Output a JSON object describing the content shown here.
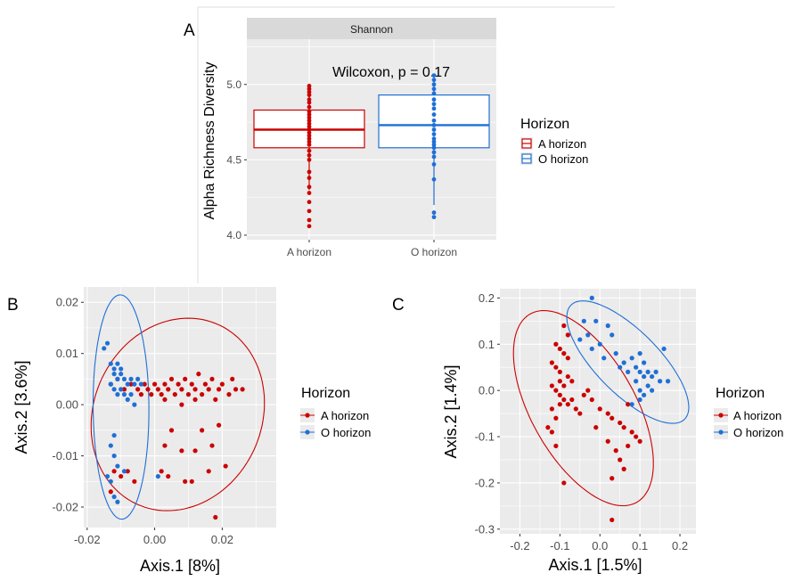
{
  "colors": {
    "a_horizon": "#cc0000",
    "o_horizon": "#1f6fd6",
    "panel_bg": "#ebebeb",
    "grid": "#ffffff",
    "strip_bg": "#d9d9d9"
  },
  "legend": {
    "title": "Horizon",
    "items": [
      "A horizon",
      "O horizon"
    ]
  },
  "chart_data": [
    {
      "panel": "A",
      "type": "box",
      "facet_label": "Shannon",
      "annotation": "Wilcoxon, p = 0.17",
      "xlabel": "",
      "ylabel": "Alpha Richness Diversity",
      "categories": [
        "A horizon",
        "O horizon"
      ],
      "yticks": [
        "4.0",
        "4.5",
        "5.0"
      ],
      "ylim": [
        3.97,
        5.3
      ],
      "boxes": [
        {
          "name": "A horizon",
          "whisker_low": 4.3,
          "q1": 4.58,
          "median": 4.7,
          "q3": 4.83,
          "whisker_high": 5.0,
          "points": [
            4.06,
            4.1,
            4.16,
            4.22,
            4.28,
            4.32,
            4.38,
            4.42,
            4.5,
            4.53,
            4.56,
            4.6,
            4.62,
            4.64,
            4.66,
            4.68,
            4.7,
            4.72,
            4.74,
            4.76,
            4.78,
            4.8,
            4.82,
            4.85,
            4.88,
            4.9,
            4.93,
            4.95,
            4.97,
            4.99
          ]
        },
        {
          "name": "O horizon",
          "whisker_low": 4.2,
          "q1": 4.58,
          "median": 4.73,
          "q3": 4.93,
          "whisker_high": 5.06,
          "points": [
            4.12,
            4.15,
            4.37,
            4.47,
            4.52,
            4.55,
            4.58,
            4.6,
            4.62,
            4.64,
            4.67,
            4.7,
            4.73,
            4.76,
            4.8,
            4.84,
            4.87,
            4.9,
            4.94,
            4.97,
            5.0,
            5.03,
            5.06
          ]
        }
      ]
    },
    {
      "panel": "B",
      "type": "scatter",
      "xlabel": "Axis.1   [8%]",
      "ylabel": "Axis.2   [3.6%]",
      "xticks": [
        "-0.02",
        "0.00",
        "0.02"
      ],
      "yticks": [
        "-0.02",
        "-0.01",
        "0.00",
        "0.01",
        "0.02"
      ],
      "xlim": [
        -0.021,
        0.036
      ],
      "ylim": [
        -0.024,
        0.023
      ],
      "series": [
        {
          "name": "A horizon",
          "points": [
            [
              -0.013,
              0.004
            ],
            [
              -0.011,
              0.005
            ],
            [
              -0.009,
              0.003
            ],
            [
              -0.007,
              0.004
            ],
            [
              -0.005,
              0.003
            ],
            [
              -0.004,
              0.002
            ],
            [
              -0.003,
              0.004
            ],
            [
              -0.002,
              0.003
            ],
            [
              -0.001,
              0.002
            ],
            [
              0.0,
              0.004
            ],
            [
              0.001,
              0.003
            ],
            [
              0.002,
              0.002
            ],
            [
              0.003,
              0.004
            ],
            [
              0.004,
              0.003
            ],
            [
              0.005,
              0.005
            ],
            [
              0.006,
              0.002
            ],
            [
              0.007,
              0.004
            ],
            [
              0.008,
              0.003
            ],
            [
              0.009,
              0.005
            ],
            [
              0.01,
              0.002
            ],
            [
              0.011,
              0.004
            ],
            [
              0.012,
              0.003
            ],
            [
              0.013,
              0.006
            ],
            [
              0.014,
              0.002
            ],
            [
              0.015,
              0.004
            ],
            [
              0.016,
              0.003
            ],
            [
              0.017,
              0.005
            ],
            [
              0.018,
              0.001
            ],
            [
              0.019,
              0.003
            ],
            [
              0.02,
              0.004
            ],
            [
              0.022,
              0.002
            ],
            [
              0.023,
              0.005
            ],
            [
              0.024,
              0.003
            ],
            [
              0.026,
              0.003
            ],
            [
              0.003,
              0.001
            ],
            [
              0.008,
              0.0
            ],
            [
              0.012,
              0.001
            ],
            [
              -0.012,
              -0.013
            ],
            [
              -0.01,
              -0.014
            ],
            [
              -0.008,
              -0.013
            ],
            [
              -0.006,
              -0.015
            ],
            [
              0.004,
              -0.014
            ],
            [
              0.009,
              -0.015
            ],
            [
              0.003,
              -0.008
            ],
            [
              0.008,
              -0.009
            ],
            [
              0.012,
              -0.009
            ],
            [
              0.017,
              -0.008
            ],
            [
              0.014,
              -0.005
            ],
            [
              0.019,
              -0.004
            ],
            [
              0.005,
              -0.005
            ],
            [
              0.021,
              -0.012
            ],
            [
              0.011,
              -0.015
            ],
            [
              0.018,
              -0.022
            ],
            [
              -0.013,
              -0.017
            ],
            [
              0.016,
              -0.013
            ],
            [
              0.002,
              -0.013
            ]
          ]
        },
        {
          "name": "O horizon",
          "points": [
            [
              -0.015,
              0.011
            ],
            [
              -0.014,
              0.012
            ],
            [
              -0.013,
              0.008
            ],
            [
              -0.012,
              0.007
            ],
            [
              -0.011,
              0.008
            ],
            [
              -0.01,
              0.007
            ],
            [
              -0.012,
              0.006
            ],
            [
              -0.011,
              0.005
            ],
            [
              -0.01,
              0.006
            ],
            [
              -0.009,
              0.005
            ],
            [
              -0.008,
              0.004
            ],
            [
              -0.007,
              0.005
            ],
            [
              -0.006,
              0.004
            ],
            [
              -0.005,
              0.005
            ],
            [
              -0.004,
              0.004
            ],
            [
              -0.013,
              0.004
            ],
            [
              -0.012,
              0.003
            ],
            [
              -0.011,
              0.002
            ],
            [
              -0.01,
              0.003
            ],
            [
              -0.009,
              0.002
            ],
            [
              -0.008,
              0.001
            ],
            [
              -0.007,
              0.002
            ],
            [
              -0.006,
              0.0
            ],
            [
              -0.013,
              -0.008
            ],
            [
              -0.012,
              -0.01
            ],
            [
              -0.011,
              -0.012
            ],
            [
              -0.014,
              -0.014
            ],
            [
              -0.013,
              -0.015
            ],
            [
              -0.012,
              -0.018
            ],
            [
              -0.011,
              -0.019
            ],
            [
              -0.009,
              -0.013
            ],
            [
              -0.012,
              -0.006
            ],
            [
              0.001,
              -0.014
            ]
          ]
        }
      ]
    },
    {
      "panel": "C",
      "type": "scatter",
      "xlabel": "Axis.1   [1.5%]",
      "ylabel": "Axis.2   [1.4%]",
      "xticks": [
        "-0.2",
        "-0.1",
        "0.0",
        "0.1",
        "0.2"
      ],
      "yticks": [
        "-0.3",
        "-0.2",
        "-0.1",
        "0.0",
        "0.1",
        "0.2"
      ],
      "xlim": [
        -0.25,
        0.24
      ],
      "ylim": [
        -0.31,
        0.22
      ],
      "series": [
        {
          "name": "A horizon",
          "points": [
            [
              -0.09,
              0.14
            ],
            [
              -0.08,
              0.12
            ],
            [
              -0.11,
              0.1
            ],
            [
              -0.1,
              0.09
            ],
            [
              -0.09,
              0.08
            ],
            [
              -0.08,
              0.07
            ],
            [
              -0.12,
              0.06
            ],
            [
              -0.11,
              0.05
            ],
            [
              -0.1,
              0.04
            ],
            [
              -0.08,
              0.03
            ],
            [
              -0.07,
              0.02
            ],
            [
              -0.1,
              0.02
            ],
            [
              -0.09,
              0.01
            ],
            [
              -0.12,
              0.01
            ],
            [
              -0.11,
              0.0
            ],
            [
              -0.1,
              -0.01
            ],
            [
              -0.09,
              -0.02
            ],
            [
              -0.08,
              -0.03
            ],
            [
              -0.07,
              -0.02
            ],
            [
              -0.06,
              -0.04
            ],
            [
              -0.05,
              -0.05
            ],
            [
              -0.1,
              -0.03
            ],
            [
              -0.12,
              -0.04
            ],
            [
              -0.11,
              -0.06
            ],
            [
              -0.04,
              -0.01
            ],
            [
              -0.03,
              0.0
            ],
            [
              -0.02,
              -0.02
            ],
            [
              0.0,
              -0.04
            ],
            [
              0.02,
              -0.05
            ],
            [
              0.03,
              -0.06
            ],
            [
              0.05,
              -0.07
            ],
            [
              0.07,
              -0.03
            ],
            [
              0.08,
              -0.09
            ],
            [
              0.09,
              -0.1
            ],
            [
              0.1,
              -0.11
            ],
            [
              -0.13,
              -0.08
            ],
            [
              -0.12,
              -0.09
            ],
            [
              -0.11,
              -0.12
            ],
            [
              -0.01,
              -0.08
            ],
            [
              0.02,
              -0.11
            ],
            [
              0.04,
              -0.13
            ],
            [
              0.05,
              -0.15
            ],
            [
              0.06,
              -0.17
            ],
            [
              0.03,
              -0.19
            ],
            [
              -0.09,
              -0.2
            ],
            [
              0.03,
              -0.28
            ],
            [
              0.07,
              -0.12
            ],
            [
              0.06,
              -0.08
            ]
          ]
        },
        {
          "name": "O horizon",
          "points": [
            [
              -0.02,
              0.2
            ],
            [
              -0.04,
              0.15
            ],
            [
              -0.01,
              0.15
            ],
            [
              0.02,
              0.14
            ],
            [
              -0.05,
              0.11
            ],
            [
              -0.03,
              0.12
            ],
            [
              0.0,
              0.1
            ],
            [
              0.03,
              0.12
            ],
            [
              -0.02,
              0.09
            ],
            [
              0.01,
              0.07
            ],
            [
              0.04,
              0.08
            ],
            [
              0.06,
              0.06
            ],
            [
              0.08,
              0.07
            ],
            [
              0.1,
              0.08
            ],
            [
              0.09,
              0.05
            ],
            [
              0.1,
              0.04
            ],
            [
              0.12,
              0.04
            ],
            [
              0.11,
              0.03
            ],
            [
              0.13,
              0.03
            ],
            [
              0.14,
              0.04
            ],
            [
              0.15,
              0.02
            ],
            [
              0.16,
              0.09
            ],
            [
              0.17,
              0.02
            ],
            [
              0.12,
              0.01
            ],
            [
              0.11,
              -0.01
            ],
            [
              0.1,
              0.0
            ],
            [
              0.13,
              0.0
            ],
            [
              0.09,
              0.02
            ],
            [
              0.1,
              -0.02
            ],
            [
              0.08,
              -0.03
            ],
            [
              0.11,
              0.06
            ],
            [
              0.07,
              0.04
            ],
            [
              0.05,
              0.05
            ]
          ]
        }
      ]
    }
  ]
}
